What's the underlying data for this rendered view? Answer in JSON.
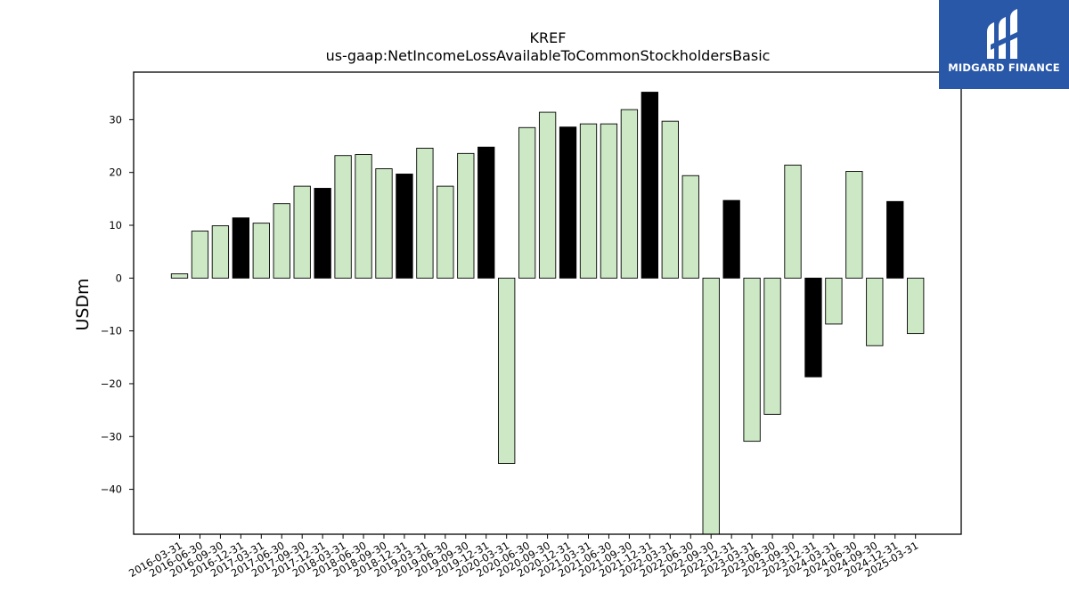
{
  "chart_data": {
    "type": "bar",
    "title": "KREF",
    "subtitle": "us-gaap:NetIncomeLossAvailableToCommonStockholdersBasic",
    "xlabel": "",
    "ylabel": "USDm",
    "ylim": [
      -48.5,
      39
    ],
    "yticks": [
      30,
      20,
      10,
      0,
      -10,
      -20,
      -30,
      -40
    ],
    "ytick_labels": [
      "30",
      "20",
      "10",
      "0",
      "−10",
      "−20",
      "−30",
      "−40"
    ],
    "categories": [
      "2016-03-31",
      "2016-06-30",
      "2016-09-30",
      "2016-12-31",
      "2017-03-31",
      "2017-06-30",
      "2017-09-30",
      "2017-12-31",
      "2018-03-31",
      "2018-06-30",
      "2018-09-30",
      "2018-12-31",
      "2019-03-31",
      "2019-06-30",
      "2019-09-30",
      "2019-12-31",
      "2020-03-31",
      "2020-06-30",
      "2020-09-30",
      "2020-12-31",
      "2021-03-31",
      "2021-06-30",
      "2021-09-30",
      "2021-12-31",
      "2022-03-31",
      "2022-06-30",
      "2022-09-30",
      "2022-12-31",
      "2023-03-31",
      "2023-06-30",
      "2023-09-30",
      "2023-12-31",
      "2024-03-31",
      "2024-06-30",
      "2024-09-30",
      "2024-12-31",
      "2025-03-31"
    ],
    "values": [
      0.8,
      8.9,
      9.9,
      11.4,
      10.4,
      14.1,
      17.4,
      17.0,
      23.2,
      23.4,
      20.7,
      19.7,
      24.6,
      17.4,
      23.6,
      24.8,
      -35.1,
      28.5,
      31.4,
      28.6,
      29.2,
      29.2,
      31.9,
      35.2,
      29.7,
      19.4,
      -49.0,
      14.7,
      -30.9,
      -25.8,
      21.4,
      -18.7,
      -8.7,
      20.2,
      -12.8,
      14.5,
      -10.5
    ],
    "highlight": [
      false,
      false,
      false,
      true,
      false,
      false,
      false,
      true,
      false,
      false,
      false,
      true,
      false,
      false,
      false,
      true,
      false,
      false,
      false,
      true,
      false,
      false,
      false,
      true,
      false,
      false,
      false,
      true,
      false,
      false,
      false,
      true,
      false,
      false,
      false,
      true,
      false
    ],
    "colors": {
      "normal": "#cce8c4",
      "highlight": "#000000",
      "edge": "#000000"
    },
    "grid": false,
    "legend": "none"
  },
  "logo": {
    "text": "MIDGARD FINANCE",
    "background": "#2a58a8",
    "foreground": "#ffffff",
    "icon": "midgard-logo-icon"
  }
}
